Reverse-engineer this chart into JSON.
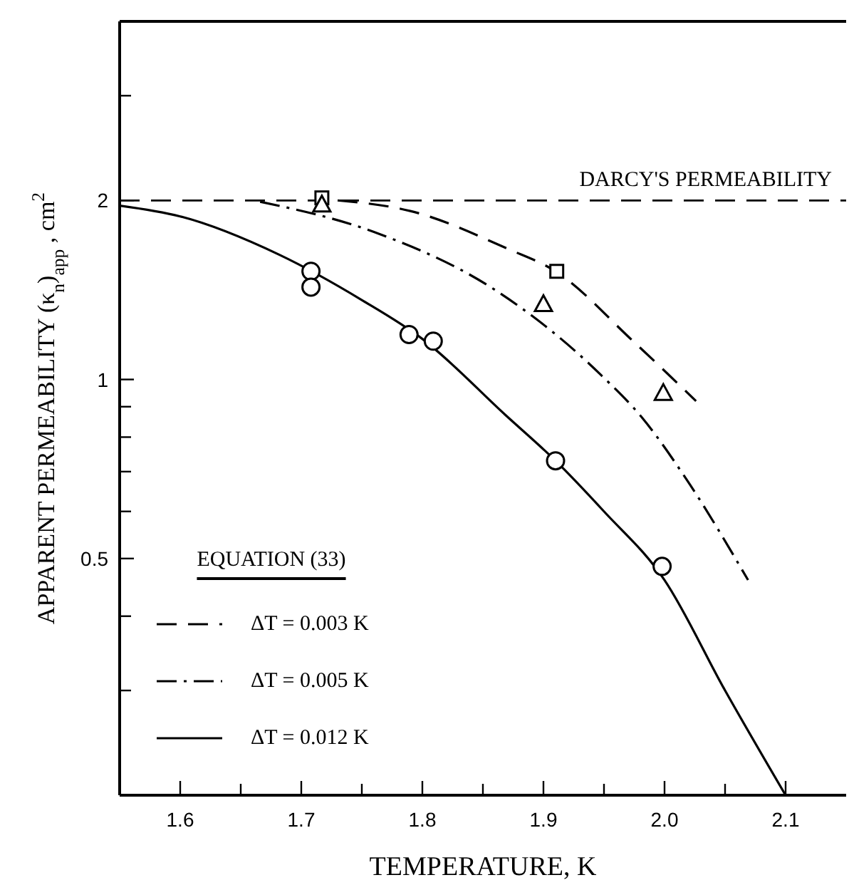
{
  "chart_data": {
    "type": "line",
    "xlabel": "TEMPERATURE, K",
    "ylabel": "APPARENT PERMEABILITY (κ$_{n}$)$_{app}$ , cm$^{2}$",
    "legend_title": "EQUATION (33)",
    "legend": "bottom left",
    "log": "y",
    "grid": false,
    "xlim": [
      1.55,
      2.15
    ],
    "xticks": [
      1.6,
      {
        "value": 1.65,
        "label": null
      },
      1.7,
      {
        "value": 1.75,
        "label": null
      },
      1.8,
      {
        "value": 1.85,
        "label": null
      },
      1.9,
      {
        "value": 1.95,
        "label": null
      },
      {
        "value": 2.0,
        "label": "2.0"
      },
      {
        "value": 2.05,
        "label": null
      },
      2.1
    ],
    "ylim": [
      0.2,
      4
    ],
    "yticks": [
      {
        "value": 0.3,
        "label": null
      },
      {
        "value": 0.4,
        "label": null
      },
      0.5,
      {
        "value": 0.6,
        "label": null
      },
      {
        "value": 0.7,
        "label": null
      },
      {
        "value": 0.8,
        "label": null
      },
      {
        "value": 0.9,
        "label": null
      },
      1,
      2,
      {
        "value": 3,
        "label": null
      }
    ],
    "ref_lines": [
      {
        "axis": "y",
        "value": 2,
        "label": "DARCY'S PERMEABILITY",
        "color": "#000000",
        "line_style": "dashed"
      }
    ],
    "series": [
      {
        "name": "ΔT = 0.003 K",
        "color": "#000000",
        "line_style": "dashed",
        "marker": "none",
        "x": [
          1.73,
          1.79,
          1.87,
          1.91,
          1.974,
          2.026
        ],
        "values": [
          2.0,
          1.92,
          1.66,
          1.52,
          1.16,
          0.92
        ]
      },
      {
        "name": "ΔT = 0.005 K",
        "color": "#000000",
        "line_style": "dashdot",
        "marker": "none",
        "x": [
          1.666,
          1.76,
          1.861,
          1.947,
          1.982,
          2.018,
          2.069
        ],
        "values": [
          1.99,
          1.77,
          1.41,
          1.02,
          0.86,
          0.68,
          0.46
        ]
      },
      {
        "name": "ΔT = 0.012 K",
        "color": "#000000",
        "line_style": "solid",
        "marker": "none",
        "x": [
          1.55,
          1.6,
          1.682,
          1.75,
          1.8,
          1.869,
          1.91,
          1.95,
          2.0,
          2.05,
          2.1
        ],
        "values": [
          1.96,
          1.88,
          1.62,
          1.36,
          1.17,
          0.87,
          0.73,
          0.6,
          0.46,
          0.3,
          0.2
        ]
      },
      {
        "type": "scatter",
        "color": "#000000",
        "marker": "circle",
        "x": [
          1.708,
          1.708,
          1.789,
          1.809,
          1.91,
          1.998
        ],
        "values": [
          1.52,
          1.43,
          1.19,
          1.16,
          0.73,
          0.485
        ]
      },
      {
        "type": "scatter",
        "color": "#000000",
        "marker": "square",
        "x": [
          1.717,
          1.911
        ],
        "values": [
          2.02,
          1.52
        ]
      },
      {
        "type": "scatter",
        "color": "#000000",
        "marker": "triangle",
        "x": [
          1.717,
          1.9,
          1.999
        ],
        "values": [
          1.97,
          1.34,
          0.95
        ]
      }
    ]
  }
}
